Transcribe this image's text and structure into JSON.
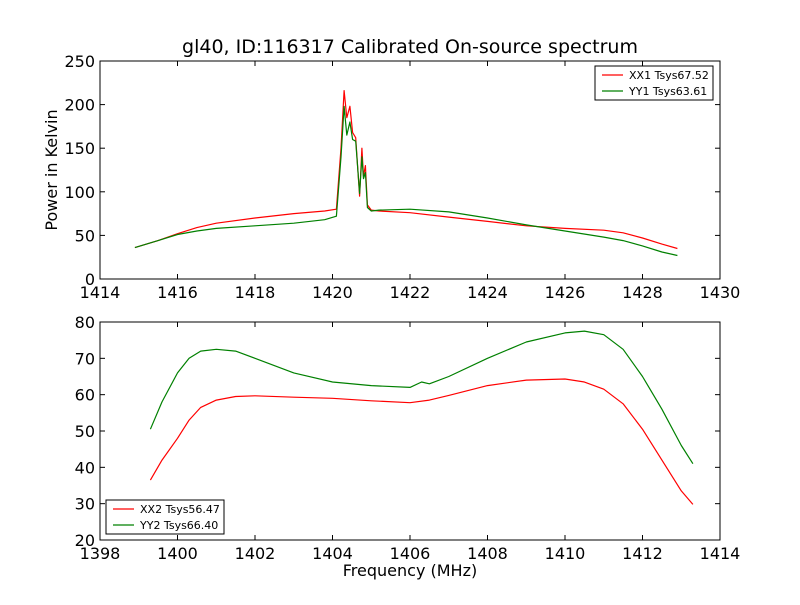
{
  "figure": {
    "title": "gl40, ID:116317 Calibrated On-source spectrum"
  },
  "chart_data": [
    {
      "type": "line",
      "title": "gl40, ID:116317 Calibrated On-source spectrum",
      "xlabel": "",
      "ylabel": "Power in Kelvin",
      "xlim": [
        1414,
        1430
      ],
      "ylim": [
        0,
        250
      ],
      "xticks": [
        1414,
        1416,
        1418,
        1420,
        1422,
        1424,
        1426,
        1428,
        1430
      ],
      "yticks": [
        0,
        50,
        100,
        150,
        200,
        250
      ],
      "legend": "top-right",
      "series": [
        {
          "name": "XX1 Tsys67.52",
          "color": "#ff0000",
          "x": [
            1414.9,
            1415.5,
            1416.0,
            1416.5,
            1417.0,
            1418.0,
            1419.0,
            1419.8,
            1420.1,
            1420.22,
            1420.3,
            1420.37,
            1420.45,
            1420.52,
            1420.6,
            1420.7,
            1420.76,
            1420.8,
            1420.85,
            1420.9,
            1421.0,
            1421.2,
            1422.0,
            1423.0,
            1424.0,
            1425.0,
            1426.0,
            1427.0,
            1427.5,
            1428.0,
            1428.5,
            1428.9
          ],
          "y": [
            36,
            44,
            52,
            59,
            64,
            70,
            75,
            78,
            80,
            150,
            216,
            185,
            198,
            168,
            162,
            95,
            150,
            118,
            130,
            85,
            79,
            78,
            76,
            71,
            66,
            61,
            58,
            56,
            53,
            47,
            40,
            35
          ]
        },
        {
          "name": "YY1 Tsys63.61",
          "color": "#008000",
          "x": [
            1414.9,
            1415.5,
            1416.0,
            1416.5,
            1417.0,
            1418.0,
            1419.0,
            1419.8,
            1420.1,
            1420.22,
            1420.3,
            1420.37,
            1420.45,
            1420.52,
            1420.6,
            1420.7,
            1420.76,
            1420.8,
            1420.85,
            1420.9,
            1421.0,
            1421.2,
            1422.0,
            1423.0,
            1424.0,
            1425.0,
            1426.0,
            1427.0,
            1427.5,
            1428.0,
            1428.5,
            1428.9
          ],
          "y": [
            36,
            44,
            51,
            55,
            58,
            61,
            64,
            68,
            72,
            140,
            198,
            165,
            180,
            160,
            158,
            98,
            140,
            115,
            122,
            82,
            78,
            79,
            80,
            77,
            70,
            62,
            55,
            48,
            44,
            38,
            31,
            27
          ]
        }
      ]
    },
    {
      "type": "line",
      "title": "",
      "xlabel": "Frequency (MHz)",
      "ylabel": "",
      "xlim": [
        1398,
        1414
      ],
      "ylim": [
        20,
        80
      ],
      "xticks": [
        1398,
        1400,
        1402,
        1404,
        1406,
        1408,
        1410,
        1412,
        1414
      ],
      "yticks": [
        20,
        30,
        40,
        50,
        60,
        70,
        80
      ],
      "legend": "bottom-left",
      "series": [
        {
          "name": "XX2 Tsys56.47",
          "color": "#ff0000",
          "x": [
            1399.3,
            1399.6,
            1400.0,
            1400.3,
            1400.6,
            1401.0,
            1401.5,
            1402.0,
            1403.0,
            1404.0,
            1405.0,
            1406.0,
            1406.5,
            1407.0,
            1408.0,
            1409.0,
            1410.0,
            1410.5,
            1411.0,
            1411.5,
            1412.0,
            1412.5,
            1413.0,
            1413.3
          ],
          "y": [
            36.5,
            42,
            48,
            53,
            56.5,
            58.5,
            59.5,
            59.7,
            59.3,
            59.0,
            58.3,
            57.8,
            58.5,
            59.8,
            62.5,
            64.0,
            64.3,
            63.5,
            61.5,
            57.5,
            50.5,
            42,
            33.5,
            29.8
          ]
        },
        {
          "name": "YY2 Tsys66.40",
          "color": "#008000",
          "x": [
            1399.3,
            1399.6,
            1400.0,
            1400.3,
            1400.6,
            1401.0,
            1401.5,
            1402.0,
            1403.0,
            1404.0,
            1405.0,
            1406.0,
            1406.3,
            1406.5,
            1407.0,
            1408.0,
            1409.0,
            1410.0,
            1410.5,
            1411.0,
            1411.5,
            1412.0,
            1412.5,
            1413.0,
            1413.3
          ],
          "y": [
            50.5,
            58,
            66,
            70,
            72,
            72.5,
            72,
            70,
            66,
            63.5,
            62.5,
            62.0,
            63.5,
            63.0,
            65,
            70,
            74.5,
            77,
            77.5,
            76.5,
            72.5,
            65,
            56,
            46,
            41
          ]
        }
      ]
    }
  ]
}
